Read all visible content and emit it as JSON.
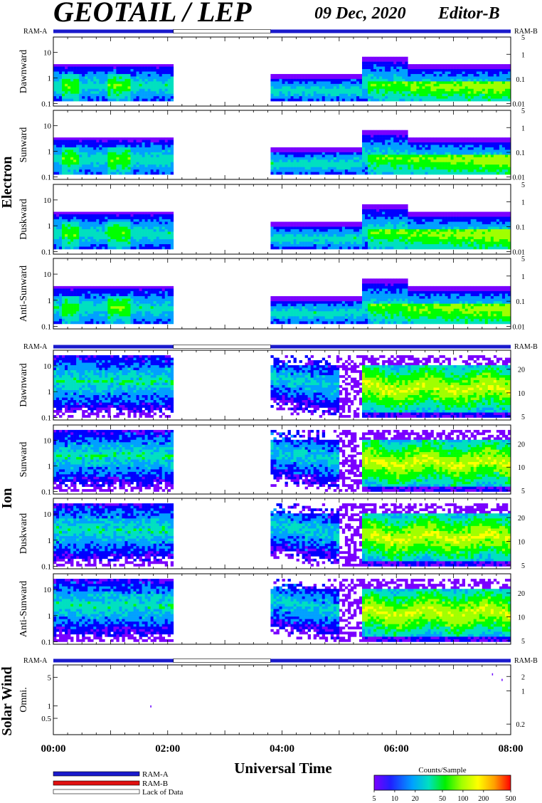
{
  "header": {
    "title": "GEOTAIL / LEP",
    "date": "09 Dec, 2020",
    "editor": "Editor-B"
  },
  "colors": {
    "ram_a": "#1a1acc",
    "ram_b": "#e01010",
    "lack": "#ffffff",
    "spectrogram_scale": [
      "#7a00ff",
      "#0000ff",
      "#00a0ff",
      "#00e0c0",
      "#00ff00",
      "#a0ff00",
      "#ffff00",
      "#ffa000",
      "#ff0000"
    ]
  },
  "chart_data": {
    "type": "heatmap",
    "x_axis": {
      "label": "Universal Time",
      "range": [
        "00:00",
        "08:00"
      ],
      "tick_labels": [
        "00:00",
        "02:00",
        "04:00",
        "06:00",
        "08:00"
      ],
      "range_hours": [
        0,
        8
      ]
    },
    "mode_bars": {
      "segments": [
        {
          "mode": "RAM-A",
          "start_hour": 0.0,
          "end_hour": 2.1
        },
        {
          "mode": "Lack of Data",
          "start_hour": 2.1,
          "end_hour": 3.8
        },
        {
          "mode": "RAM-A",
          "start_hour": 3.8,
          "end_hour": 8.0
        }
      ],
      "left_label": "RAM-A",
      "right_label": "RAM-B"
    },
    "groups": [
      {
        "name": "Electron",
        "left_ticks": [
          "10",
          "1",
          "0.1"
        ],
        "left_range": [
          0.08,
          40
        ],
        "right_ticks": [
          "5",
          "1",
          "0.1",
          "0.01"
        ],
        "right_range": [
          0.008,
          5
        ],
        "panels": [
          {
            "label": "Dawnward"
          },
          {
            "label": "Sunward"
          },
          {
            "label": "Duskward"
          },
          {
            "label": "Anti-Sunward"
          }
        ]
      },
      {
        "name": "Ion",
        "left_ticks": [
          "10",
          "1",
          "0.1"
        ],
        "left_range": [
          0.08,
          40
        ],
        "right_ticks": [
          "20",
          "10",
          "5"
        ],
        "right_range": [
          4.5,
          35
        ],
        "panels": [
          {
            "label": "Dawnward"
          },
          {
            "label": "Sunward"
          },
          {
            "label": "Duskward"
          },
          {
            "label": "Anti-Sunward"
          }
        ]
      },
      {
        "name": "Solar Wind",
        "left_ticks": [
          "5",
          "1",
          "0.5"
        ],
        "left_range": [
          0.2,
          10
        ],
        "right_ticks": [
          "2",
          "1",
          "0.2"
        ],
        "right_range": [
          0.12,
          3.5
        ],
        "panels": [
          {
            "label": "Omni."
          }
        ]
      }
    ],
    "data_gap_hours": [
      2.1,
      3.8
    ],
    "colorbar": {
      "title": "Counts/Sample",
      "ticks": [
        "5",
        "10",
        "20",
        "50",
        "100",
        "200",
        "500"
      ],
      "tick_values": [
        5,
        10,
        20,
        50,
        100,
        200,
        500
      ],
      "range": [
        5,
        500
      ],
      "scale": "log"
    },
    "legend": [
      {
        "label": "RAM-A",
        "color": "#1a1acc"
      },
      {
        "label": "RAM-B",
        "color": "#e01010"
      },
      {
        "label": "Lack of Data",
        "color": "#ffffff"
      }
    ]
  }
}
